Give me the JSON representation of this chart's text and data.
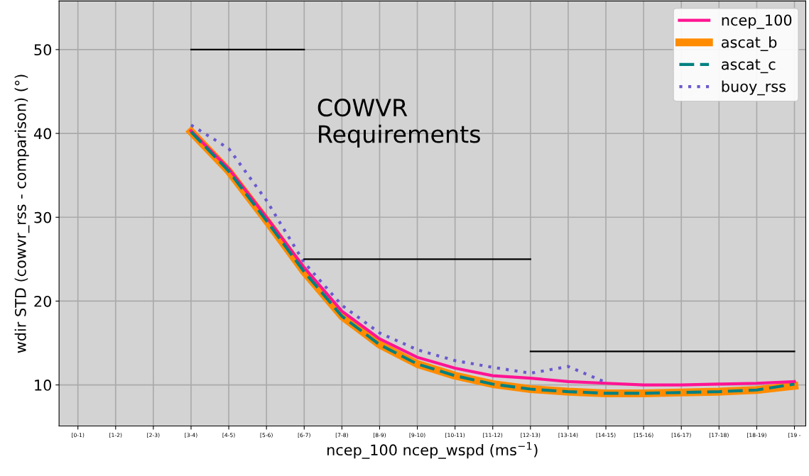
{
  "chart_data": {
    "type": "line",
    "categories": [
      "[0-1)",
      "[1-2)",
      "[2-3)",
      "[3-4)",
      "[4-5)",
      "[5-6)",
      "[6-7)",
      "[7-8)",
      "[8-9)",
      "[9-10)",
      "[10-11)",
      "[11-12)",
      "[12-13)",
      "[13-14)",
      "[14-15)",
      "[15-16)",
      "[16-17)",
      "[17-18)",
      "[18-19)",
      "[19 -"
    ],
    "xlabel": "ncep_100 ncep_wspd (ms$^{−1}$)",
    "ylabel": "wdir STD (cowvr_rss - comparison) (°)",
    "ylim": [
      5.1,
      55.8
    ],
    "yticks": [
      10,
      20,
      30,
      40,
      50
    ],
    "grid": true,
    "legend": "top right",
    "annotations": [
      "COWVR\nRequirements"
    ],
    "series": [
      {
        "name": "ncep_100",
        "color": "#ff1493",
        "line_style": "solid",
        "values": [
          null,
          null,
          null,
          40.3,
          35.8,
          30.0,
          24.0,
          18.8,
          15.5,
          13.3,
          12.0,
          11.1,
          10.8,
          10.4,
          10.2,
          10.0,
          10.0,
          10.1,
          10.2,
          10.4
        ]
      },
      {
        "name": "ascat_b",
        "color": "#ff8c00",
        "line_style": "solid",
        "values": [
          null,
          null,
          null,
          40.2,
          35.5,
          29.6,
          23.5,
          18.2,
          14.8,
          12.5,
          11.1,
          10.1,
          9.5,
          9.2,
          9.0,
          9.0,
          9.1,
          9.2,
          9.4,
          9.9
        ]
      },
      {
        "name": "ascat_c",
        "color": "#008080",
        "line_style": "dashed",
        "values": [
          null,
          null,
          null,
          40.2,
          35.5,
          29.6,
          23.5,
          18.2,
          14.8,
          12.5,
          11.1,
          10.1,
          9.5,
          9.2,
          9.0,
          9.0,
          9.1,
          9.2,
          9.4,
          10.1
        ]
      },
      {
        "name": "buoy_rss",
        "color": "#6a5acd",
        "line_style": "dotted",
        "values": [
          null,
          null,
          null,
          41.0,
          38.2,
          32.0,
          24.6,
          19.5,
          16.2,
          14.2,
          12.9,
          12.1,
          11.4,
          12.2,
          10.3,
          null,
          null,
          null,
          null,
          null
        ]
      },
      {
        "color": "#000000",
        "line_style": "solid",
        "values": [
          null,
          null,
          null,
          50,
          50,
          50,
          50,
          null,
          null,
          null,
          null,
          null,
          null,
          null,
          null,
          null,
          null,
          null,
          null,
          null
        ]
      },
      {
        "color": "#000000",
        "line_style": "solid",
        "values": [
          null,
          null,
          null,
          null,
          null,
          null,
          25,
          25,
          25,
          25,
          25,
          25,
          25,
          null,
          null,
          null,
          null,
          null,
          null,
          null
        ]
      },
      {
        "color": "#000000",
        "line_style": "solid",
        "values": [
          null,
          null,
          null,
          null,
          null,
          null,
          null,
          null,
          null,
          null,
          null,
          null,
          14,
          14,
          14,
          14,
          14,
          14,
          14,
          14
        ]
      }
    ]
  }
}
